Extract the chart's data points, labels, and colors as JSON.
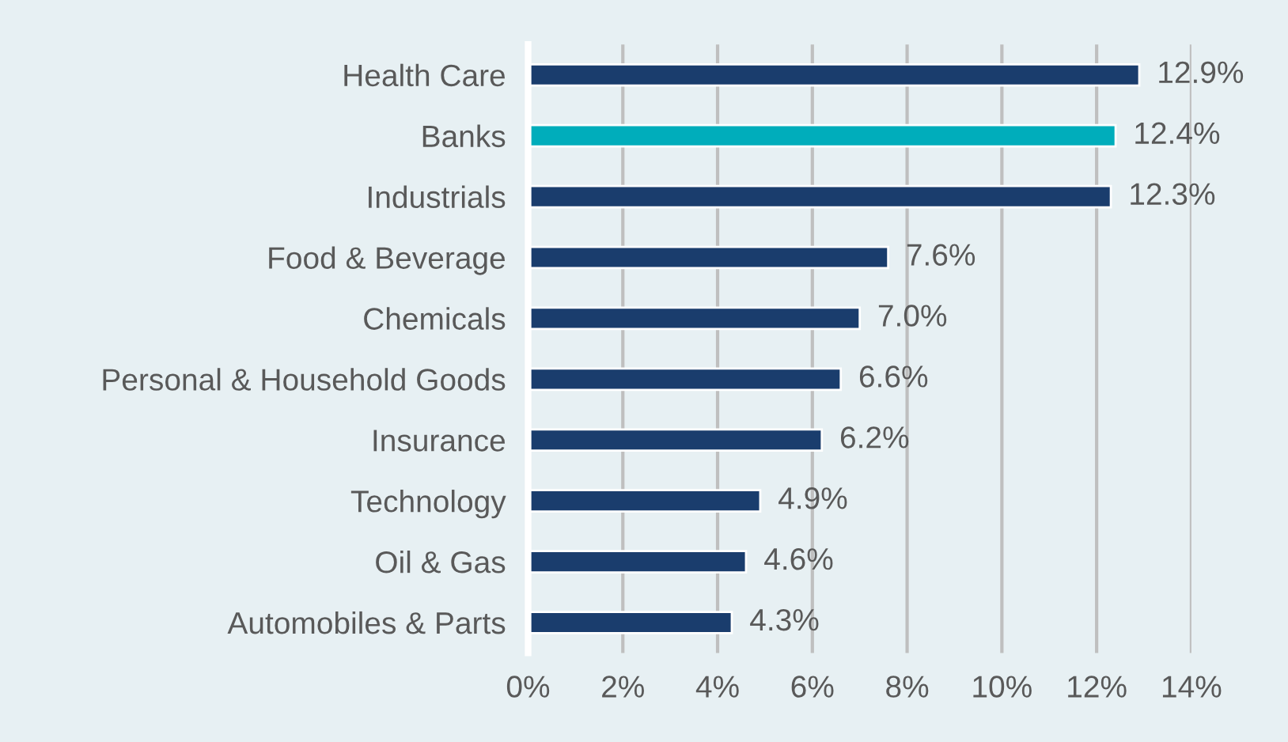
{
  "chart_data": {
    "type": "bar",
    "orientation": "horizontal",
    "categories": [
      "Health Care",
      "Banks",
      "Industrials",
      "Food & Beverage",
      "Chemicals",
      "Personal & Household Goods",
      "Insurance",
      "Technology",
      "Oil & Gas",
      "Automobiles & Parts"
    ],
    "values": [
      12.9,
      12.4,
      12.3,
      7.6,
      7.0,
      6.6,
      6.2,
      4.9,
      4.6,
      4.3
    ],
    "colors": [
      "#1a3d6d",
      "#00adbb",
      "#1a3d6d",
      "#1a3d6d",
      "#1a3d6d",
      "#1a3d6d",
      "#1a3d6d",
      "#1a3d6d",
      "#1a3d6d",
      "#1a3d6d"
    ],
    "value_labels": [
      "12.9%",
      "12.4%",
      "12.3%",
      "7.6%",
      "7.0%",
      "6.6%",
      "6.2%",
      "4.9%",
      "4.6%",
      "4.3%"
    ],
    "xlim": [
      0,
      14
    ],
    "xticks": [
      {
        "value": 0,
        "label": "0%"
      },
      {
        "value": 2,
        "label": "2%"
      },
      {
        "value": 4,
        "label": "4%"
      },
      {
        "value": 6,
        "label": "6%"
      },
      {
        "value": 8,
        "label": "8%"
      },
      {
        "value": 10,
        "label": "10%"
      },
      {
        "value": 12,
        "label": "12%"
      },
      {
        "value": 14,
        "label": "14%"
      }
    ],
    "grid": "x",
    "legend": false
  }
}
